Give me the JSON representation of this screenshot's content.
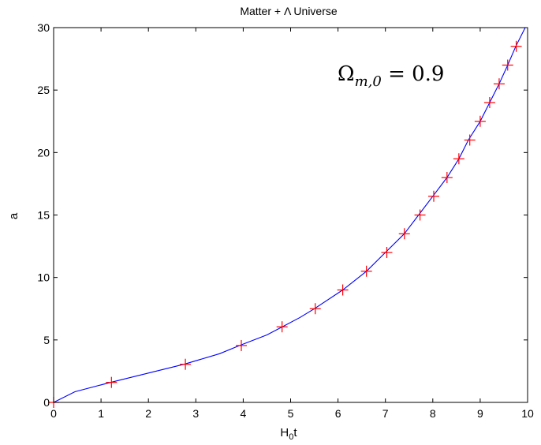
{
  "chart_data": {
    "type": "line",
    "title": "Matter + Λ Universe",
    "xlabel": "H",
    "xlabel_sub": "0",
    "xlabel_tail": "t",
    "ylabel": "a",
    "xlim": [
      0,
      10
    ],
    "ylim": [
      0,
      30
    ],
    "xticks": [
      "0",
      "1",
      "2",
      "3",
      "4",
      "5",
      "6",
      "7",
      "8",
      "9",
      "10"
    ],
    "yticks": [
      "0",
      "5",
      "10",
      "15",
      "20",
      "25",
      "30"
    ],
    "grid": false,
    "annotation": {
      "base": "Ω",
      "sub": "m,0",
      "rest": " = 0.9"
    },
    "series": [
      {
        "style": "line",
        "color": "#0000ff",
        "x": [
          0,
          0.45,
          1.2,
          2.0,
          2.75,
          3.5,
          3.95,
          4.5,
          4.8,
          5.2,
          5.5,
          6.1,
          6.6,
          7.0,
          7.4,
          7.7,
          8.0,
          8.3,
          8.55,
          8.75,
          9.0,
          9.2,
          9.4,
          9.58,
          9.75,
          9.95
        ],
        "y": [
          0,
          0.85,
          1.6,
          2.35,
          3.05,
          3.9,
          4.6,
          5.4,
          6.0,
          6.8,
          7.5,
          9.0,
          10.5,
          12.0,
          13.5,
          15.0,
          16.5,
          18.0,
          19.5,
          21.0,
          22.5,
          24.0,
          25.5,
          27.0,
          28.5,
          30.0
        ]
      },
      {
        "style": "marker",
        "marker": "+",
        "color": "#ff0000",
        "x": [
          0,
          1.22,
          2.78,
          3.96,
          4.82,
          5.52,
          6.1,
          6.6,
          7.03,
          7.4,
          7.73,
          8.02,
          8.3,
          8.55,
          8.78,
          9.0,
          9.2,
          9.4,
          9.58,
          9.76
        ],
        "y": [
          0,
          1.6,
          3.05,
          4.55,
          6.05,
          7.5,
          9.0,
          10.5,
          12.0,
          13.5,
          15.0,
          16.5,
          18.0,
          19.5,
          21.0,
          22.5,
          24.0,
          25.5,
          27.0,
          28.5
        ]
      }
    ]
  }
}
